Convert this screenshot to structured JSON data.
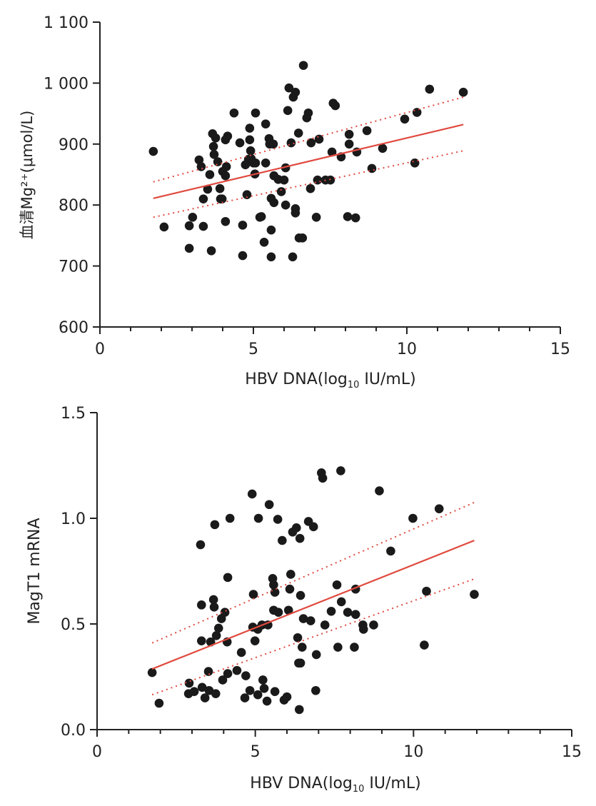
{
  "chart_data": [
    {
      "type": "scatter",
      "ylabel": "血清Mg²⁺(μmol/L)",
      "xlabel": {
        "prefix": "HBV DNA(log",
        "sub": "10",
        "suffix": " IU/mL)"
      },
      "xlim": [
        0,
        15
      ],
      "ylim": [
        600,
        1100
      ],
      "xticks": [
        0,
        5,
        10,
        15
      ],
      "xtick_labels": [
        "0",
        "5",
        "10",
        "15"
      ],
      "yticks": [
        600,
        700,
        800,
        900,
        1000,
        1100
      ],
      "ytick_labels": [
        "600",
        "700",
        "800",
        "900",
        "1 000",
        "1 100"
      ],
      "grid": false,
      "point_color": "#1a1a1a",
      "fit_color": "#e04a3f",
      "fit_line": {
        "x": [
          1.74,
          11.84
        ],
        "y": [
          811,
          932
        ]
      },
      "ci_upper": {
        "x": [
          1.74,
          11.84
        ],
        "y": [
          838,
          977
        ]
      },
      "ci_lower": {
        "x": [
          1.74,
          11.84
        ],
        "y": [
          780,
          889
        ]
      },
      "points": [
        [
          1.74,
          888
        ],
        [
          2.09,
          764
        ],
        [
          2.91,
          766
        ],
        [
          2.91,
          729
        ],
        [
          3.02,
          780
        ],
        [
          3.23,
          874
        ],
        [
          3.3,
          863
        ],
        [
          3.37,
          810
        ],
        [
          3.37,
          765
        ],
        [
          3.51,
          826
        ],
        [
          3.58,
          850
        ],
        [
          3.63,
          725
        ],
        [
          3.67,
          917
        ],
        [
          3.7,
          896
        ],
        [
          3.72,
          883
        ],
        [
          3.77,
          910
        ],
        [
          3.84,
          871
        ],
        [
          3.91,
          827
        ],
        [
          3.93,
          810
        ],
        [
          4.0,
          855
        ],
        [
          3.98,
          810
        ],
        [
          4.09,
          907
        ],
        [
          4.16,
          913
        ],
        [
          4.12,
          863
        ],
        [
          4.09,
          848
        ],
        [
          4.09,
          773
        ],
        [
          4.37,
          951
        ],
        [
          4.56,
          902
        ],
        [
          4.65,
          767
        ],
        [
          4.65,
          717
        ],
        [
          4.74,
          866
        ],
        [
          4.79,
          817
        ],
        [
          4.84,
          875
        ],
        [
          4.88,
          926
        ],
        [
          4.88,
          907
        ],
        [
          4.91,
          889
        ],
        [
          4.93,
          876
        ],
        [
          5.0,
          869
        ],
        [
          5.05,
          851
        ],
        [
          5.07,
          951
        ],
        [
          5.07,
          869
        ],
        [
          5.21,
          780
        ],
        [
          5.26,
          781
        ],
        [
          5.35,
          739
        ],
        [
          5.4,
          933
        ],
        [
          5.4,
          869
        ],
        [
          5.51,
          909
        ],
        [
          5.53,
          900
        ],
        [
          5.58,
          759
        ],
        [
          5.58,
          715
        ],
        [
          5.65,
          900
        ],
        [
          5.67,
          848
        ],
        [
          5.58,
          811
        ],
        [
          5.67,
          804
        ],
        [
          5.81,
          842
        ],
        [
          5.91,
          822
        ],
        [
          6.0,
          841
        ],
        [
          6.05,
          861
        ],
        [
          6.05,
          800
        ],
        [
          6.12,
          955
        ],
        [
          6.16,
          992
        ],
        [
          6.23,
          902
        ],
        [
          6.3,
          977
        ],
        [
          6.37,
          985
        ],
        [
          6.37,
          794
        ],
        [
          6.37,
          787
        ],
        [
          6.28,
          715
        ],
        [
          6.47,
          918
        ],
        [
          6.49,
          746
        ],
        [
          6.6,
          746
        ],
        [
          6.63,
          1029
        ],
        [
          6.74,
          943
        ],
        [
          6.79,
          951
        ],
        [
          6.86,
          827
        ],
        [
          6.88,
          902
        ],
        [
          7.05,
          780
        ],
        [
          7.09,
          841
        ],
        [
          7.14,
          908
        ],
        [
          7.35,
          841
        ],
        [
          7.51,
          841
        ],
        [
          7.56,
          887
        ],
        [
          7.6,
          967
        ],
        [
          7.67,
          963
        ],
        [
          7.86,
          879
        ],
        [
          8.07,
          781
        ],
        [
          8.12,
          916
        ],
        [
          8.12,
          900
        ],
        [
          8.33,
          779
        ],
        [
          8.37,
          887
        ],
        [
          8.7,
          922
        ],
        [
          8.86,
          860
        ],
        [
          9.21,
          893
        ],
        [
          9.93,
          941
        ],
        [
          10.26,
          869
        ],
        [
          10.33,
          952
        ],
        [
          10.74,
          990
        ],
        [
          11.84,
          985
        ]
      ]
    },
    {
      "type": "scatter",
      "ylabel": "MagT1 mRNA",
      "xlabel": {
        "prefix": "HBV DNA(log",
        "sub": "10",
        "suffix": " IU/mL)"
      },
      "xlim": [
        0,
        15
      ],
      "ylim": [
        0,
        1.5
      ],
      "xticks": [
        0,
        5,
        10,
        15
      ],
      "xtick_labels": [
        "0",
        "5",
        "10",
        "15"
      ],
      "yticks": [
        0,
        0.5,
        1.0,
        1.5
      ],
      "ytick_labels": [
        "0.0",
        "0.5",
        "1.0",
        "1.5"
      ],
      "grid": false,
      "point_color": "#1a1a1a",
      "fit_color": "#e04a3f",
      "fit_line": {
        "x": [
          1.74,
          11.92
        ],
        "y": [
          0.287,
          0.895
        ]
      },
      "ci_upper": {
        "x": [
          1.74,
          11.92
        ],
        "y": [
          0.41,
          1.075
        ]
      },
      "ci_lower": {
        "x": [
          1.74,
          11.92
        ],
        "y": [
          0.165,
          0.713
        ]
      },
      "points": [
        [
          1.74,
          0.27
        ],
        [
          1.96,
          0.125
        ],
        [
          3.27,
          0.875
        ],
        [
          3.72,
          0.97
        ],
        [
          4.2,
          1.0
        ],
        [
          4.9,
          1.115
        ],
        [
          5.44,
          1.065
        ],
        [
          5.1,
          1.0
        ],
        [
          5.71,
          0.995
        ],
        [
          5.85,
          0.895
        ],
        [
          6.18,
          0.935
        ],
        [
          6.3,
          0.955
        ],
        [
          6.41,
          0.905
        ],
        [
          6.68,
          0.985
        ],
        [
          6.84,
          0.96
        ],
        [
          7.09,
          1.215
        ],
        [
          7.13,
          1.19
        ],
        [
          7.7,
          1.225
        ],
        [
          8.92,
          1.13
        ],
        [
          9.98,
          1.0
        ],
        [
          10.81,
          1.045
        ],
        [
          9.28,
          0.845
        ],
        [
          10.41,
          0.655
        ],
        [
          11.92,
          0.64
        ],
        [
          10.34,
          0.4
        ],
        [
          4.13,
          0.72
        ],
        [
          3.3,
          0.59
        ],
        [
          3.68,
          0.615
        ],
        [
          3.7,
          0.58
        ],
        [
          4.04,
          0.555
        ],
        [
          3.93,
          0.525
        ],
        [
          3.84,
          0.48
        ],
        [
          3.77,
          0.445
        ],
        [
          3.3,
          0.42
        ],
        [
          3.59,
          0.415
        ],
        [
          4.11,
          0.415
        ],
        [
          4.56,
          0.365
        ],
        [
          4.94,
          0.64
        ],
        [
          4.92,
          0.485
        ],
        [
          5.08,
          0.475
        ],
        [
          5.21,
          0.495
        ],
        [
          5.4,
          0.495
        ],
        [
          4.99,
          0.42
        ],
        [
          5.55,
          0.715
        ],
        [
          5.58,
          0.685
        ],
        [
          5.62,
          0.65
        ],
        [
          5.58,
          0.565
        ],
        [
          5.73,
          0.555
        ],
        [
          6.05,
          0.565
        ],
        [
          6.12,
          0.735
        ],
        [
          6.09,
          0.665
        ],
        [
          6.43,
          0.635
        ],
        [
          6.52,
          0.525
        ],
        [
          6.75,
          0.515
        ],
        [
          6.34,
          0.435
        ],
        [
          6.48,
          0.39
        ],
        [
          6.93,
          0.355
        ],
        [
          6.37,
          0.315
        ],
        [
          6.43,
          0.315
        ],
        [
          7.2,
          0.495
        ],
        [
          7.4,
          0.56
        ],
        [
          7.58,
          0.685
        ],
        [
          7.72,
          0.605
        ],
        [
          7.92,
          0.555
        ],
        [
          8.17,
          0.545
        ],
        [
          8.17,
          0.665
        ],
        [
          8.4,
          0.495
        ],
        [
          8.42,
          0.475
        ],
        [
          8.74,
          0.495
        ],
        [
          7.61,
          0.39
        ],
        [
          8.13,
          0.39
        ],
        [
          3.52,
          0.275
        ],
        [
          2.91,
          0.22
        ],
        [
          2.89,
          0.17
        ],
        [
          3.07,
          0.18
        ],
        [
          3.32,
          0.2
        ],
        [
          3.41,
          0.15
        ],
        [
          3.54,
          0.185
        ],
        [
          3.75,
          0.17
        ],
        [
          3.97,
          0.235
        ],
        [
          4.13,
          0.265
        ],
        [
          4.42,
          0.28
        ],
        [
          4.7,
          0.255
        ],
        [
          4.67,
          0.15
        ],
        [
          4.83,
          0.185
        ],
        [
          5.08,
          0.165
        ],
        [
          5.24,
          0.235
        ],
        [
          5.28,
          0.195
        ],
        [
          5.37,
          0.135
        ],
        [
          5.62,
          0.18
        ],
        [
          5.91,
          0.14
        ],
        [
          6.0,
          0.155
        ],
        [
          6.39,
          0.095
        ],
        [
          6.91,
          0.185
        ]
      ]
    }
  ]
}
